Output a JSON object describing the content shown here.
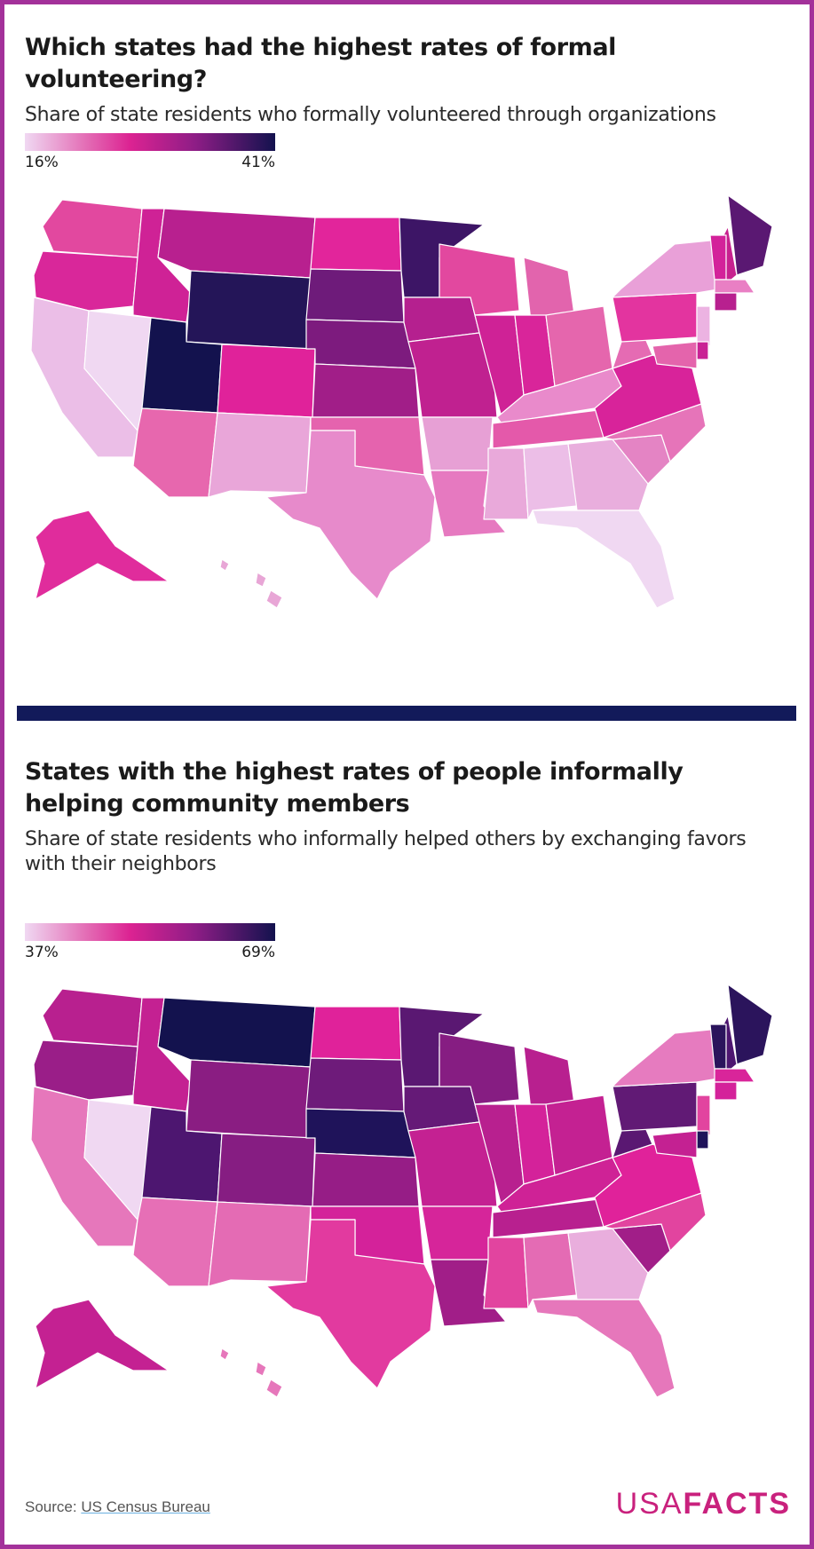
{
  "map1": {
    "title": "Which states had the highest rates of formal volunteering?",
    "subtitle": "Share of state residents who formally volunteered through organizations",
    "legend": {
      "min": "16%",
      "max": "41%"
    },
    "colors": {
      "WA": "#e2489f",
      "OR": "#d9279a",
      "CA": "#ebbee7",
      "NV": "#f0d8f2",
      "ID": "#cf2296",
      "MT": "#b8208f",
      "WY": "#241558",
      "UT": "#13124e",
      "AZ": "#e767ae",
      "CO": "#e0229a",
      "NM": "#e9a6d9",
      "ND": "#e2259b",
      "SD": "#6e1b7a",
      "NE": "#7d1b7e",
      "KS": "#a11e88",
      "OK": "#e563ae",
      "TX": "#e78acb",
      "MN": "#3d1566",
      "IA": "#b5208f",
      "MO": "#c02190",
      "AR": "#e7a0d5",
      "LA": "#e679c0",
      "WI": "#e2489f",
      "IL": "#cf2296",
      "MI": "#e264ad",
      "IN": "#d9259a",
      "OH": "#e566ad",
      "KY": "#e98acb",
      "TN": "#e459aa",
      "MS": "#e9a9da",
      "AL": "#ecbee7",
      "GA": "#e9aedd",
      "FL": "#f0d8f2",
      "SC": "#e484c4",
      "NC": "#e674b9",
      "VA": "#d8239a",
      "WV": "#e56bb3",
      "PA": "#e3349f",
      "NY": "#e9a0d8",
      "ME": "#5a1872",
      "NH": "#c7218f",
      "VT": "#d3229a",
      "MA": "#e97fc4",
      "CT": "#b8208f",
      "NJ": "#ecb3e2",
      "DE": "#c92294",
      "MD": "#e464ac",
      "AK": "#e02c9c",
      "HI": "#e8a6d6"
    }
  },
  "map2": {
    "title": "States with the highest rates of people informally helping community members",
    "subtitle": "Share of state residents who informally helped others by exchanging favors with their neighbors",
    "legend": {
      "min": "37%",
      "max": "69%"
    },
    "colors": {
      "WA": "#b8208f",
      "OR": "#9a1e88",
      "CA": "#e677bb",
      "NV": "#f0d8f2",
      "ID": "#c42192",
      "MT": "#13124e",
      "WY": "#8a1d82",
      "UT": "#4d1670",
      "AZ": "#e66fb6",
      "CO": "#861d82",
      "NM": "#e46bb4",
      "ND": "#e0229a",
      "SD": "#6e1b7a",
      "NE": "#1f135a",
      "KS": "#961d86",
      "OK": "#d4229a",
      "TX": "#e23a9f",
      "MN": "#5a1872",
      "IA": "#651a77",
      "MO": "#c42192",
      "AR": "#d6259a",
      "LA": "#a11e88",
      "WI": "#861d82",
      "IL": "#b8208f",
      "MI": "#b8208f",
      "IN": "#d4229a",
      "OH": "#c42192",
      "KY": "#cf2296",
      "TN": "#b8208f",
      "MS": "#e2449f",
      "AL": "#e46bb4",
      "GA": "#e9aedd",
      "FL": "#e677bb",
      "SC": "#a11e88",
      "NC": "#e2449f",
      "VA": "#e0229a",
      "WV": "#5a1872",
      "PA": "#611a75",
      "NY": "#e67bbf",
      "ME": "#2b145c",
      "NH": "#4d1670",
      "VT": "#2b145c",
      "MA": "#d9259a",
      "CT": "#d4229a",
      "NJ": "#e2449f",
      "DE": "#1f135a",
      "MD": "#c42192",
      "AK": "#c42192",
      "HI": "#e677bb"
    }
  },
  "footer": {
    "source_label": "Source:",
    "source_link": "US Census Bureau",
    "logo_light": "USA",
    "logo_bold": "FACTS"
  }
}
